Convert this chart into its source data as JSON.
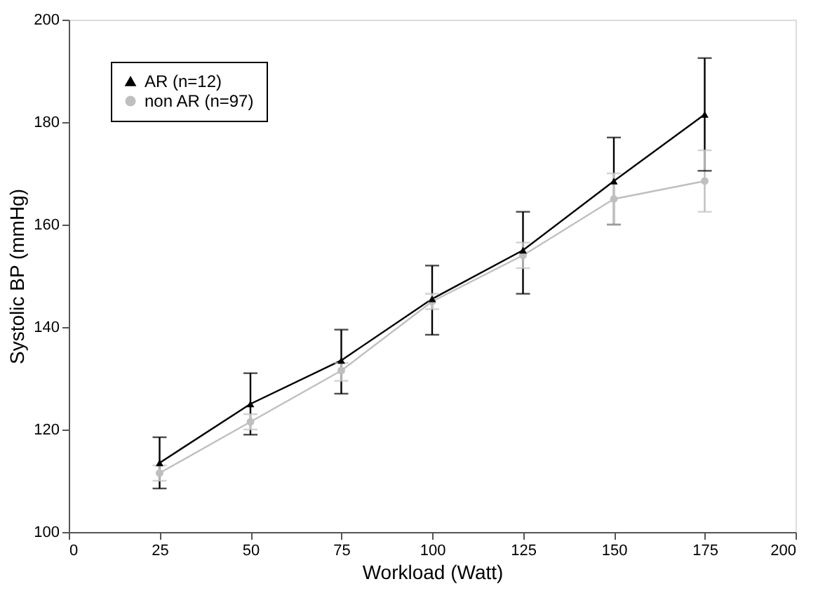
{
  "chart_data": {
    "type": "line",
    "xlabel": "Workload (Watt)",
    "ylabel": "Systolic BP (mmHg)",
    "x": [
      25,
      50,
      75,
      100,
      125,
      150,
      175
    ],
    "series": [
      {
        "name": "AR (n=12)",
        "color": "#000000",
        "marker": "triangle",
        "values": [
          113.5,
          125,
          133.5,
          145.5,
          155,
          168.5,
          181.5
        ],
        "errors": [
          [
            108.5,
            118.5
          ],
          [
            119,
            131
          ],
          [
            127,
            139.5
          ],
          [
            138.5,
            152
          ],
          [
            146.5,
            162.5
          ],
          [
            160,
            177
          ],
          [
            170.5,
            192.5
          ]
        ]
      },
      {
        "name": "non AR (n=97)",
        "color": "#bfbfbf",
        "marker": "circle",
        "values": [
          111.5,
          121.5,
          131.5,
          145,
          154,
          165,
          168.5
        ],
        "errors": [
          [
            110,
            113
          ],
          [
            120,
            123
          ],
          [
            129.5,
            133
          ],
          [
            143.5,
            146.5
          ],
          [
            151.5,
            156.5
          ],
          [
            160,
            170
          ],
          [
            162.5,
            174.5
          ]
        ]
      }
    ],
    "xlim": [
      0,
      200
    ],
    "xticks": [
      0,
      25,
      50,
      75,
      100,
      125,
      150,
      175,
      200
    ],
    "ylim": [
      100,
      200
    ],
    "yticks": [
      100,
      120,
      140,
      160,
      180,
      200
    ],
    "grid": false,
    "legend": "top left",
    "line_style": "solid"
  }
}
